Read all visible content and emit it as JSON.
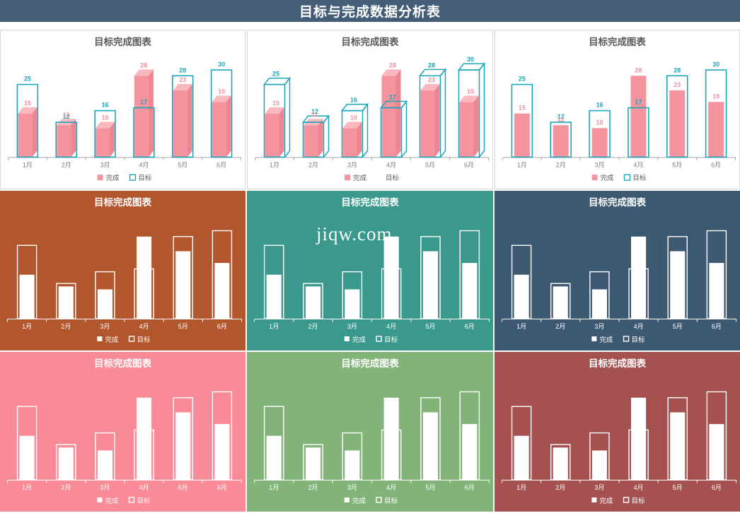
{
  "page_title": "目标与完成数据分析表",
  "watermark": "jiqw.com",
  "colors": {
    "header_bg": "#455e77",
    "accent_teal": "#1aa6ba",
    "pink_front": "#f5949f",
    "pink_top": "#f9b8bd",
    "pink_side": "#ee8593",
    "completed_label": "#f0909c",
    "target_label": "#1aa6ba",
    "title_gray": "#595959",
    "axis_gray": "#a6a6a6",
    "month_gray": "#7f7f7f",
    "panel_border": "#d9d9d9",
    "white": "#ffffff"
  },
  "chart_data": [
    {
      "type": "bar",
      "variant": "3d-front",
      "bg": "#ffffff",
      "title": "目标完成图表",
      "categories": [
        "1月",
        "2月",
        "3月",
        "4月",
        "5月",
        "6月"
      ],
      "series": [
        {
          "name": "完成",
          "values": [
            15,
            11,
            10,
            28,
            23,
            19
          ]
        },
        {
          "name": "目标",
          "values": [
            25,
            12,
            16,
            17,
            28,
            30
          ]
        }
      ],
      "ylim": [
        0,
        32
      ],
      "grid": false,
      "legend_position": "bottom",
      "value_labels": true,
      "target_legend_marker": true
    },
    {
      "type": "bar",
      "variant": "3d-box",
      "bg": "#ffffff",
      "title": "目标完成图表",
      "categories": [
        "1月",
        "2月",
        "3月",
        "4月",
        "5月",
        "6月"
      ],
      "series": [
        {
          "name": "完成",
          "values": [
            15,
            11,
            10,
            28,
            23,
            19
          ]
        },
        {
          "name": "目标",
          "values": [
            25,
            12,
            16,
            17,
            28,
            30
          ]
        }
      ],
      "ylim": [
        0,
        32
      ],
      "grid": false,
      "legend_position": "bottom",
      "value_labels": true,
      "target_legend_marker": false
    },
    {
      "type": "bar",
      "variant": "flat",
      "bg": "#ffffff",
      "title": "目标完成图表",
      "categories": [
        "1月",
        "2月",
        "3月",
        "4月",
        "5月",
        "6月"
      ],
      "series": [
        {
          "name": "完成",
          "values": [
            15,
            11,
            10,
            28,
            23,
            19
          ]
        },
        {
          "name": "目标",
          "values": [
            25,
            12,
            16,
            17,
            28,
            30
          ]
        }
      ],
      "ylim": [
        0,
        32
      ],
      "grid": false,
      "legend_position": "bottom",
      "value_labels": true,
      "target_legend_marker": true
    },
    {
      "type": "bar",
      "variant": "white-on-color",
      "bg": "#b2562e",
      "title": "目标完成图表",
      "categories": [
        "1月",
        "2月",
        "3月",
        "4月",
        "5月",
        "6月"
      ],
      "series": [
        {
          "name": "完成",
          "values": [
            15,
            11,
            10,
            28,
            23,
            19
          ]
        },
        {
          "name": "目标",
          "values": [
            25,
            12,
            16,
            17,
            28,
            30
          ]
        }
      ],
      "ylim": [
        0,
        32
      ],
      "grid": false,
      "legend_position": "bottom",
      "value_labels": false,
      "target_legend_marker": true
    },
    {
      "type": "bar",
      "variant": "white-on-color",
      "bg": "#3a998c",
      "title": "目标完成图表",
      "categories": [
        "1月",
        "2月",
        "3月",
        "4月",
        "5月",
        "6月"
      ],
      "series": [
        {
          "name": "完成",
          "values": [
            15,
            11,
            10,
            28,
            23,
            19
          ]
        },
        {
          "name": "目标",
          "values": [
            25,
            12,
            16,
            17,
            28,
            30
          ]
        }
      ],
      "ylim": [
        0,
        32
      ],
      "grid": false,
      "legend_position": "bottom",
      "value_labels": false,
      "target_legend_marker": true
    },
    {
      "type": "bar",
      "variant": "white-on-color",
      "bg": "#3d5971",
      "title": "目标完成图表",
      "categories": [
        "1月",
        "2月",
        "3月",
        "4月",
        "5月",
        "6月"
      ],
      "series": [
        {
          "name": "完成",
          "values": [
            15,
            11,
            10,
            28,
            23,
            19
          ]
        },
        {
          "name": "目标",
          "values": [
            25,
            12,
            16,
            17,
            28,
            30
          ]
        }
      ],
      "ylim": [
        0,
        32
      ],
      "grid": false,
      "legend_position": "bottom",
      "value_labels": false,
      "target_legend_marker": true
    },
    {
      "type": "bar",
      "variant": "white-on-color",
      "bg": "#f88b97",
      "title": "目标完成图表",
      "categories": [
        "1月",
        "2月",
        "3月",
        "4月",
        "5月",
        "6月"
      ],
      "series": [
        {
          "name": "完成",
          "values": [
            15,
            11,
            10,
            28,
            23,
            19
          ]
        },
        {
          "name": "目标",
          "values": [
            25,
            12,
            16,
            17,
            28,
            30
          ]
        }
      ],
      "ylim": [
        0,
        32
      ],
      "grid": false,
      "legend_position": "bottom",
      "value_labels": false,
      "target_legend_marker": true
    },
    {
      "type": "bar",
      "variant": "white-on-color",
      "bg": "#82b47a",
      "title": "目标完成图表",
      "categories": [
        "1月",
        "2月",
        "3月",
        "4月",
        "5月",
        "6月"
      ],
      "series": [
        {
          "name": "完成",
          "values": [
            15,
            11,
            10,
            28,
            23,
            19
          ]
        },
        {
          "name": "目标",
          "values": [
            25,
            12,
            16,
            17,
            28,
            30
          ]
        }
      ],
      "ylim": [
        0,
        32
      ],
      "grid": false,
      "legend_position": "bottom",
      "value_labels": false,
      "target_legend_marker": true
    },
    {
      "type": "bar",
      "variant": "white-on-color",
      "bg": "#a45150",
      "title": "目标完成图表",
      "categories": [
        "1月",
        "2月",
        "3月",
        "4月",
        "5月",
        "6月"
      ],
      "series": [
        {
          "name": "完成",
          "values": [
            15,
            11,
            10,
            28,
            23,
            19
          ]
        },
        {
          "name": "目标",
          "values": [
            25,
            12,
            16,
            17,
            28,
            30
          ]
        }
      ],
      "ylim": [
        0,
        32
      ],
      "grid": false,
      "legend_position": "bottom",
      "value_labels": false,
      "target_legend_marker": true
    }
  ]
}
